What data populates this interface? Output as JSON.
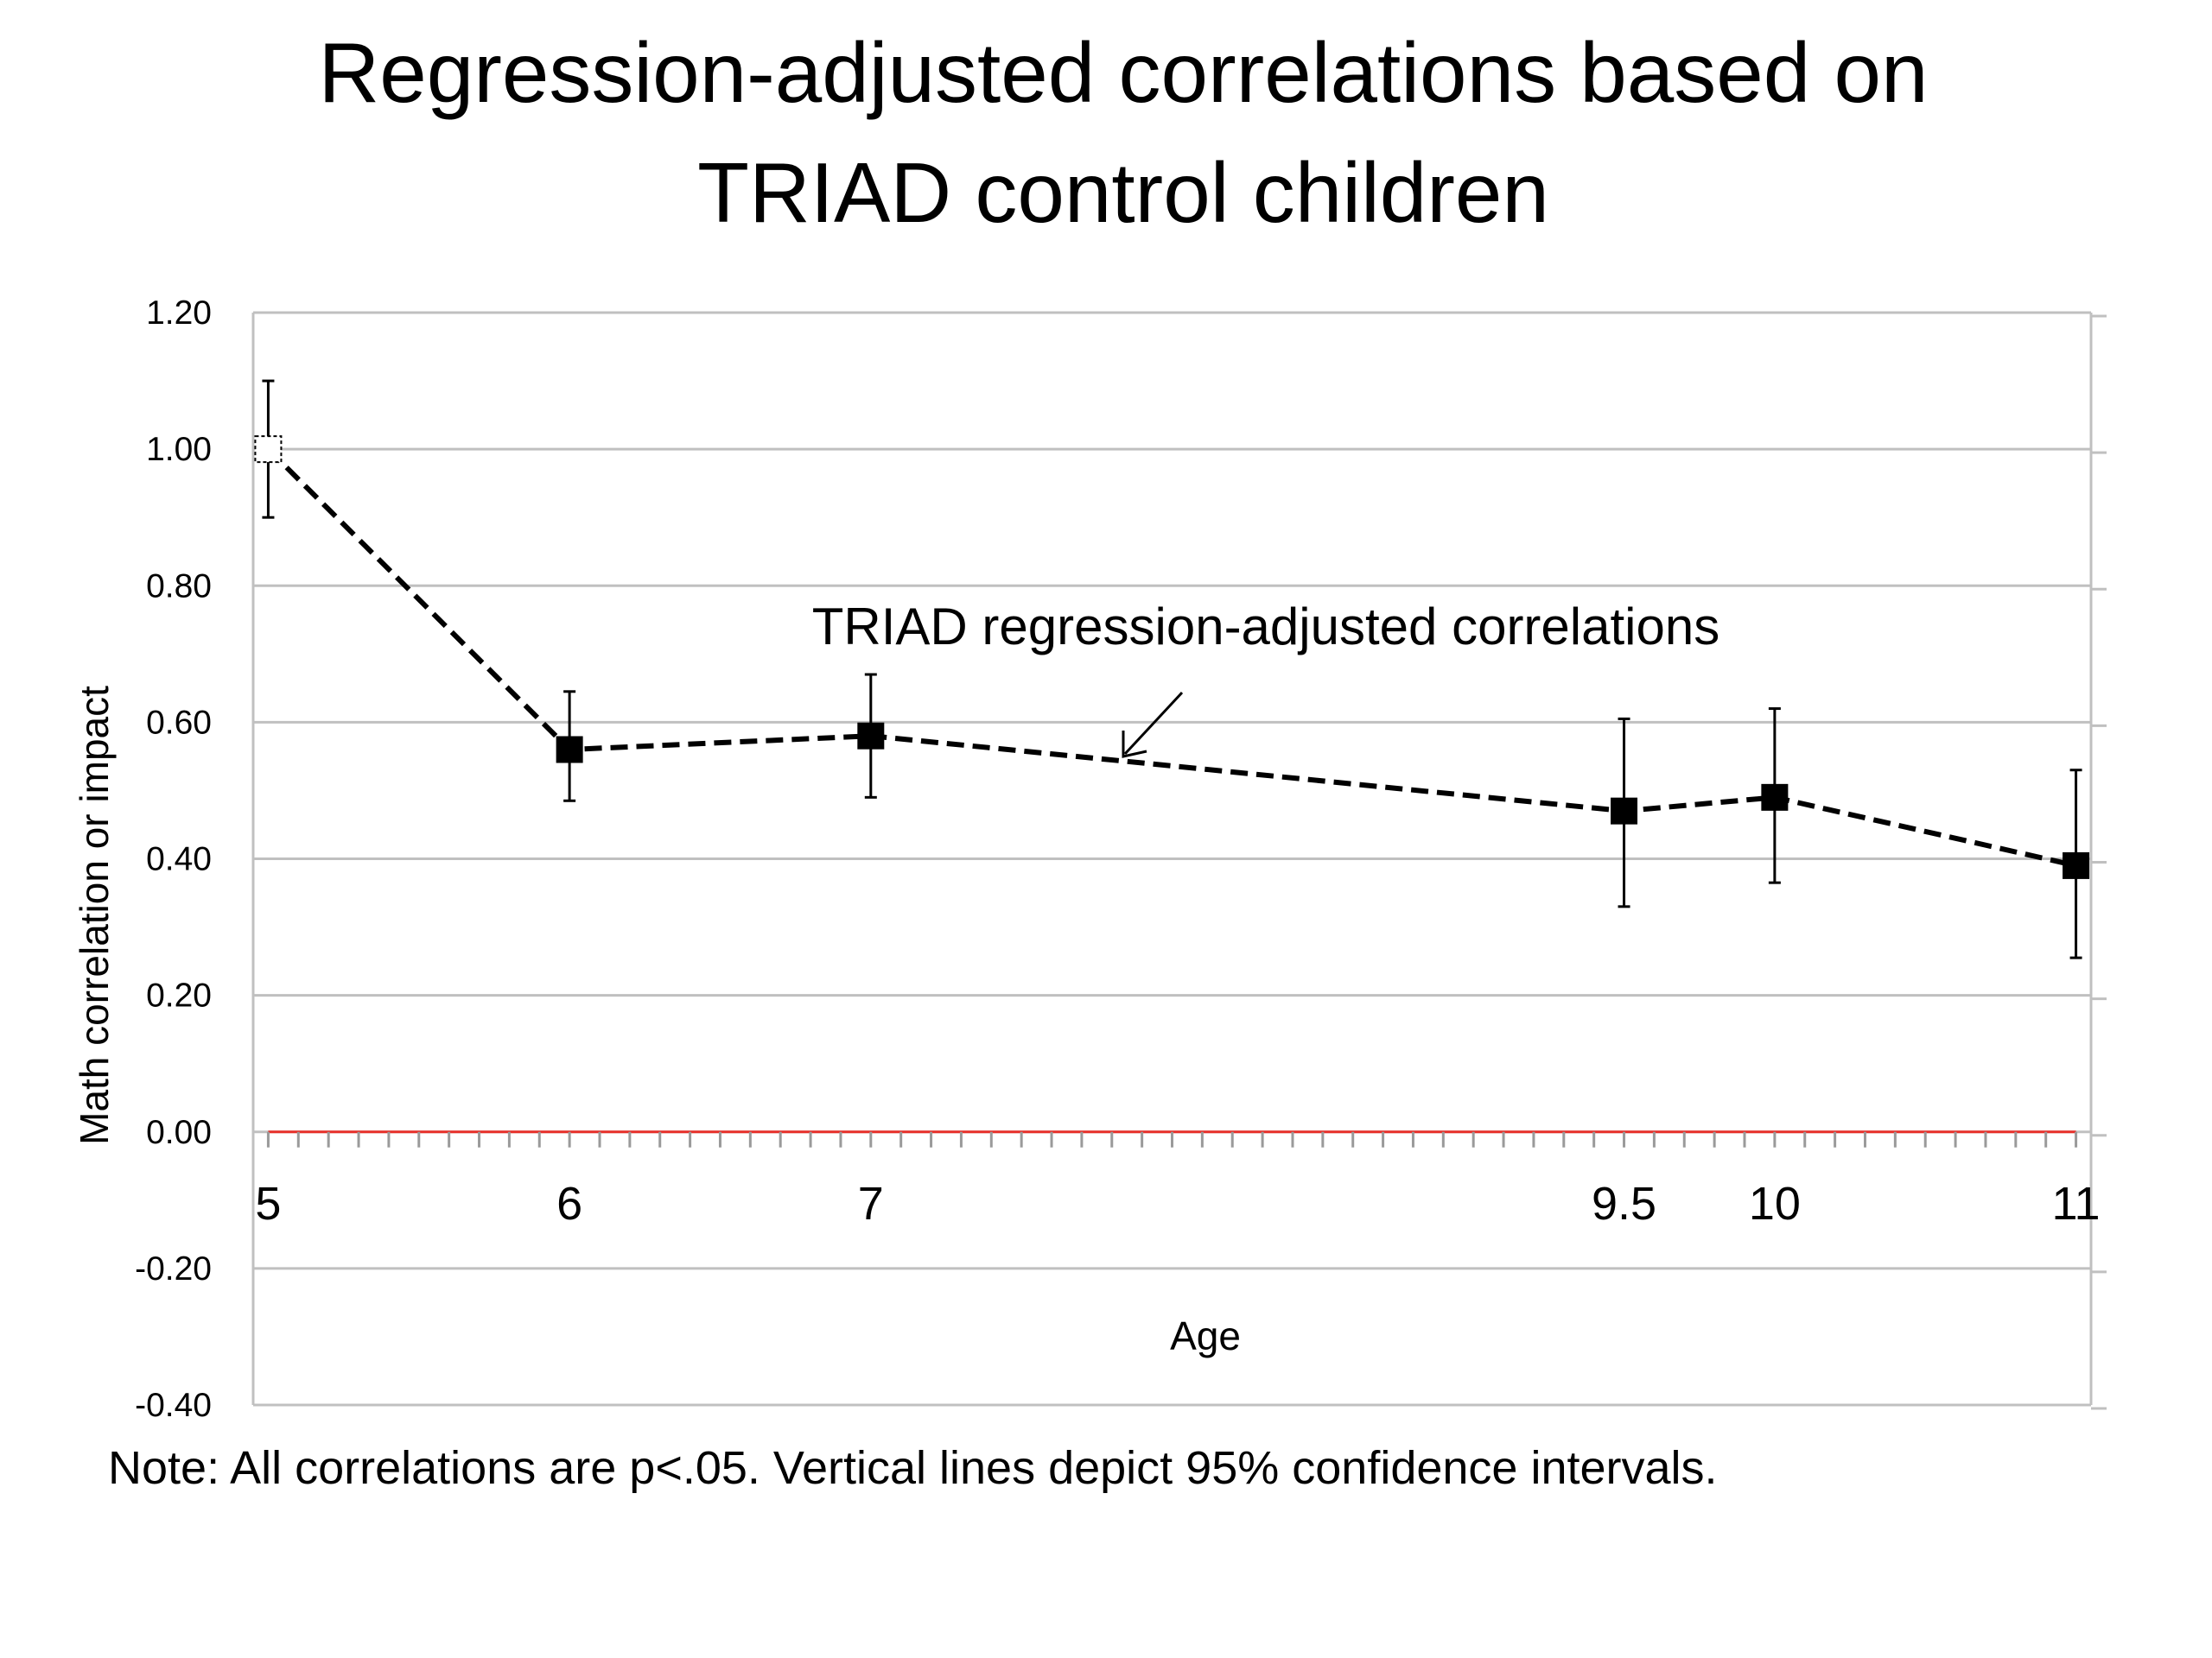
{
  "title_lines": [
    "Regression-adjusted correlations based on",
    "TRIAD control children"
  ],
  "note": "Note: All correlations are p<.05. Vertical lines depict 95% confidence intervals.",
  "annotation": "TRIAD regression-adjusted correlations",
  "colors": {
    "series": "#000000",
    "zero_line": "#e8302a",
    "grid": "#c0c0c0",
    "first_marker_fill": "#ffffff"
  },
  "chart_data": {
    "type": "line",
    "title": "",
    "xlabel": "Age",
    "ylabel": "Math correlation or impact",
    "xlim": [
      5,
      11.05
    ],
    "ylim": [
      -0.4,
      1.2
    ],
    "y_ticks": [
      "1.20",
      "1.00",
      "0.80",
      "0.60",
      "0.40",
      "0.20",
      "0.00",
      "-0.20",
      "-0.40"
    ],
    "x_tick_labels": [
      "5",
      "6",
      "7",
      "9.5",
      "10",
      "11"
    ],
    "grid": "horizontal",
    "legend": "none",
    "series": [
      {
        "name": "TRIAD regression-adjusted correlations",
        "x": [
          5,
          6,
          7,
          9.5,
          10,
          11
        ],
        "y": [
          1.0,
          0.56,
          0.58,
          0.47,
          0.49,
          0.39
        ],
        "ci_low": [
          0.9,
          0.485,
          0.49,
          0.33,
          0.365,
          0.255
        ],
        "ci_high": [
          1.1,
          0.645,
          0.67,
          0.605,
          0.62,
          0.53
        ],
        "line_style": "dashed",
        "marker": "square",
        "first_marker_hollow": true
      }
    ],
    "reference_lines": [
      {
        "y": 0.0,
        "color": "red"
      }
    ]
  }
}
